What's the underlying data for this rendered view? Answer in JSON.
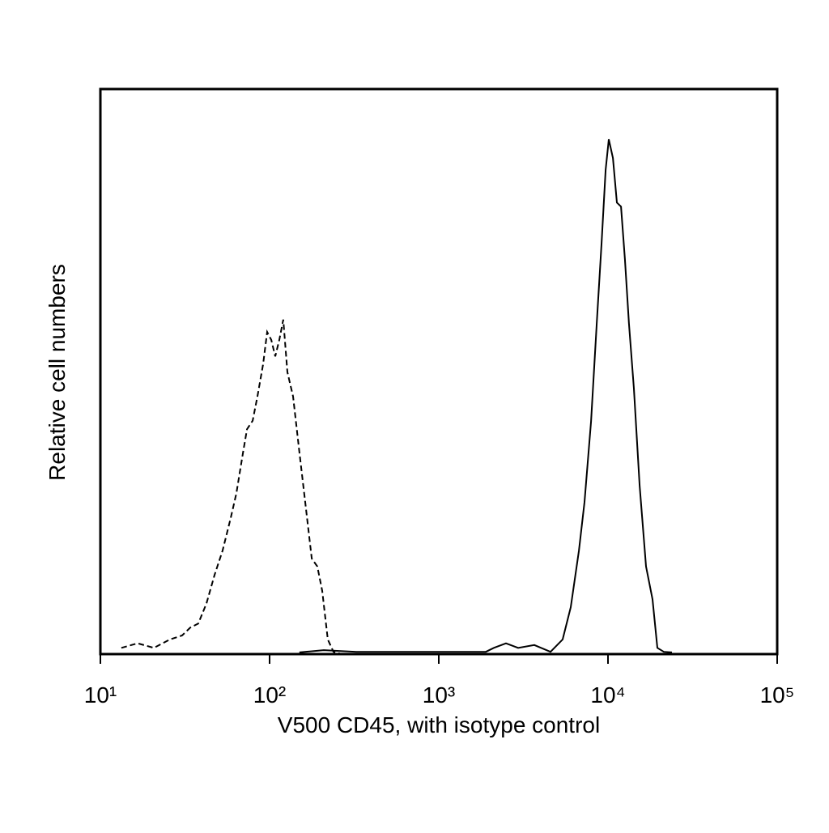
{
  "chart_data": {
    "type": "line",
    "x_label": "V500 CD45, with isotype control",
    "y_label": "Relative cell numbers",
    "xscale": "log",
    "xlim": [
      10,
      100000
    ],
    "xticks": [
      {
        "value": 10,
        "label": "10¹"
      },
      {
        "value": 100,
        "label": "10²"
      },
      {
        "value": 1000,
        "label": "10³"
      },
      {
        "value": 10000,
        "label": "10⁴"
      },
      {
        "value": 100000,
        "label": "10⁵"
      }
    ],
    "ylim": [
      0,
      100
    ],
    "grid": false,
    "series": [
      {
        "color": "#000000",
        "dash": "dashed",
        "x": [
          13.3,
          16.6,
          20.7,
          25.8,
          30.4,
          34.0,
          37.9,
          42.4,
          47.3,
          52.7,
          58.9,
          63.6,
          69.5,
          73.5,
          79.4,
          84.8,
          91.6,
          96.8,
          102.3,
          108.0,
          114.1,
          120.5,
          127.4,
          137.7,
          150.3,
          162.4,
          177.5,
          191.6,
          204.6,
          220.9,
          238.6,
          260.6
        ],
        "values": [
          1.1,
          1.9,
          1.1,
          2.6,
          3.3,
          4.7,
          5.4,
          9.0,
          14.0,
          18.3,
          24.1,
          28.4,
          35.5,
          39.8,
          41.3,
          45.6,
          51.3,
          57.0,
          55.6,
          52.7,
          55.6,
          59.2,
          49.9,
          45.6,
          35.5,
          26.9,
          16.9,
          15.5,
          11.2,
          2.6,
          0.4,
          0.1
        ]
      },
      {
        "color": "#000000",
        "dash": "solid",
        "x": [
          150,
          209,
          325,
          703,
          1896,
          2115,
          2494,
          2943,
          3670,
          4572,
          5395,
          6026,
          6731,
          7266,
          7943,
          8576,
          9164,
          9683,
          10115,
          10690,
          11290,
          11940,
          12590,
          13300,
          14220,
          15380,
          16790,
          18330,
          19590,
          21380,
          23880
        ],
        "values": [
          0.3,
          0.7,
          0.4,
          0.4,
          0.4,
          1.1,
          1.9,
          1.1,
          1.6,
          0.4,
          2.6,
          8.3,
          18.3,
          26.9,
          41.2,
          58.5,
          72.8,
          85.7,
          91.1,
          87.8,
          79.9,
          79.2,
          69.9,
          58.5,
          47.0,
          29.8,
          15.5,
          9.7,
          1.1,
          0.4,
          0.3
        ]
      }
    ]
  }
}
